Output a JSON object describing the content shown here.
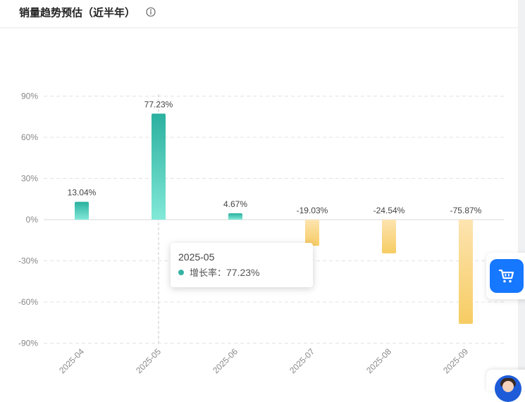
{
  "header": {
    "title": "销量趋势预估（近半年）",
    "info_icon": "info-circle-icon"
  },
  "chart_data": {
    "type": "bar",
    "categories": [
      "2025-04",
      "2025-05",
      "2025-06",
      "2025-07",
      "2025-08",
      "2025-09"
    ],
    "values": [
      13.04,
      77.23,
      4.67,
      -19.03,
      -24.54,
      -75.87
    ],
    "value_labels": [
      "13.04%",
      "77.23%",
      "4.67%",
      "-19.03%",
      "-24.54%",
      "-75.87%"
    ],
    "y_ticks": [
      "90%",
      "60%",
      "30%",
      "0%",
      "-30%",
      "-60%",
      "-90%"
    ],
    "ylim": [
      -90,
      90
    ],
    "grid": true,
    "colors": {
      "positive_top": "#2bb09f",
      "positive_bottom": "#82e9d8",
      "negative_top": "#fde4b0",
      "negative_bottom": "#f6cc63",
      "grid": "#e3e3e3"
    },
    "series": [
      {
        "name": "增长率",
        "values": [
          13.04,
          77.23,
          4.67,
          -19.03,
          -24.54,
          -75.87
        ]
      }
    ]
  },
  "tooltip": {
    "title": "2025-05",
    "series_label": "增长率：",
    "value": "77.23%",
    "dot_color": "#36b3a4"
  },
  "floating": {
    "cart_icon": "shopping-cart-icon",
    "avatar": "support-avatar"
  }
}
